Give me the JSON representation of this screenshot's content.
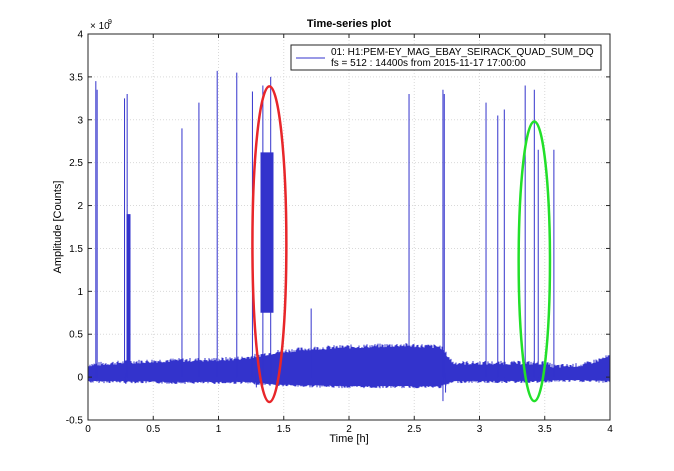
{
  "chart_data": {
    "type": "line",
    "title": "Time-series plot",
    "xlabel": "Time [h]",
    "ylabel": "Amplitude [Counts]",
    "y_exponent_label": "× 10",
    "y_exponent": "9",
    "xlim": [
      0,
      4
    ],
    "ylim": [
      -0.5,
      4
    ],
    "x_ticks": [
      0,
      0.5,
      1,
      1.5,
      2,
      2.5,
      3,
      3.5,
      4
    ],
    "x_tick_labels": [
      "0",
      "0.5",
      "1",
      "1.5",
      "2",
      "2.5",
      "3",
      "3.5",
      "4"
    ],
    "y_ticks": [
      -0.5,
      0,
      0.5,
      1,
      1.5,
      2,
      2.5,
      3,
      3.5,
      4
    ],
    "y_tick_labels": [
      "-0.5",
      "0",
      "0.5",
      "1",
      "1.5",
      "2",
      "2.5",
      "3",
      "3.5",
      "4"
    ],
    "grid": true,
    "legend": {
      "placement": "top-right",
      "lines": [
        "01: H1:PEM-EY_MAG_EBAY_SEIRACK_QUAD_SUM_DQ",
        "fs = 512 : 14400s from 2015-11-17 17:00:00"
      ]
    },
    "series": [
      {
        "color": "#3333cc",
        "baseline_band": [
          {
            "x": 0.0,
            "lo": -0.04,
            "hi": 0.12
          },
          {
            "x": 0.3,
            "lo": -0.04,
            "hi": 0.15
          },
          {
            "x": 0.6,
            "lo": -0.05,
            "hi": 0.17
          },
          {
            "x": 1.0,
            "lo": -0.05,
            "hi": 0.18
          },
          {
            "x": 1.2,
            "lo": -0.05,
            "hi": 0.2
          },
          {
            "x": 1.45,
            "lo": -0.08,
            "hi": 0.27
          },
          {
            "x": 1.7,
            "lo": -0.09,
            "hi": 0.31
          },
          {
            "x": 2.0,
            "lo": -0.1,
            "hi": 0.33
          },
          {
            "x": 2.4,
            "lo": -0.1,
            "hi": 0.35
          },
          {
            "x": 2.7,
            "lo": -0.1,
            "hi": 0.33
          },
          {
            "x": 2.8,
            "lo": -0.04,
            "hi": 0.14
          },
          {
            "x": 3.2,
            "lo": -0.04,
            "hi": 0.14
          },
          {
            "x": 3.5,
            "lo": -0.04,
            "hi": 0.14
          },
          {
            "x": 3.57,
            "lo": -0.03,
            "hi": 0.1
          },
          {
            "x": 3.8,
            "lo": -0.03,
            "hi": 0.12
          },
          {
            "x": 4.0,
            "lo": -0.04,
            "hi": 0.22
          }
        ],
        "spikes": [
          {
            "x": 0.06,
            "y": 3.45
          },
          {
            "x": 0.07,
            "y": 3.35
          },
          {
            "x": 0.28,
            "y": 3.25
          },
          {
            "x": 0.3,
            "y": 3.3
          },
          {
            "x": 0.72,
            "y": 2.9
          },
          {
            "x": 0.85,
            "y": 3.2
          },
          {
            "x": 0.99,
            "y": 3.57
          },
          {
            "x": 1.14,
            "y": 3.55
          },
          {
            "x": 1.26,
            "y": 3.33
          },
          {
            "x": 1.34,
            "y": 3.4
          },
          {
            "x": 1.4,
            "y": 3.5
          },
          {
            "x": 1.71,
            "y": 0.8
          },
          {
            "x": 2.46,
            "y": 3.3
          },
          {
            "x": 2.72,
            "y": 3.35
          },
          {
            "x": 2.73,
            "y": 3.3
          },
          {
            "x": 3.05,
            "y": 3.2
          },
          {
            "x": 3.14,
            "y": 3.05
          },
          {
            "x": 3.19,
            "y": 3.12
          },
          {
            "x": 3.35,
            "y": 3.4
          },
          {
            "x": 3.42,
            "y": 3.35
          },
          {
            "x": 3.45,
            "y": 2.65
          },
          {
            "x": 3.57,
            "y": 2.65
          }
        ],
        "negative_spikes": [
          {
            "x": 0.29,
            "y": -0.08
          },
          {
            "x": 1.29,
            "y": -0.12
          },
          {
            "x": 2.72,
            "y": -0.28
          },
          {
            "x": 2.74,
            "y": -0.18
          }
        ],
        "burst": {
          "x_start": 1.33,
          "x_end": 1.41,
          "lo": 0.75,
          "hi": 2.62
        },
        "small_burst": {
          "x_start": 0.3,
          "x_end": 0.32,
          "lo": -0.05,
          "hi": 1.9
        }
      }
    ],
    "annotations": [
      {
        "shape": "ellipse",
        "color": "#e8262a",
        "cx": 1.39,
        "cy": 1.55,
        "rx": 0.13,
        "ry": 1.84
      },
      {
        "shape": "ellipse",
        "color": "#22e02a",
        "cx": 3.42,
        "cy": 1.35,
        "rx": 0.12,
        "ry": 1.63
      }
    ]
  }
}
